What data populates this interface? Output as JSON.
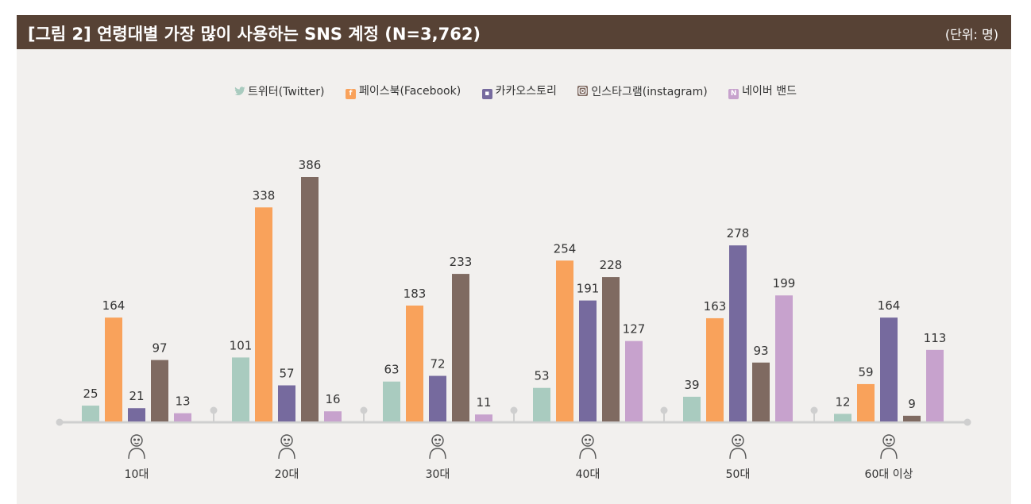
{
  "header": {
    "title": "[그림 2]  연령대별 가장 많이 사용하는 SNS 계정 (N=3,762)",
    "unit": "(단위: 명)"
  },
  "colors": {
    "header_bg": "#574235",
    "panel_bg": "#f2f0ee",
    "axis": "#cfcfcf",
    "label": "#333333"
  },
  "legend": [
    {
      "label": "트위터(Twitter)",
      "icon": "twitter-bird-icon"
    },
    {
      "label": "페이스북(Facebook)",
      "icon": "facebook-f-icon"
    },
    {
      "label": "카카오스토리",
      "icon": "kakaostory-icon"
    },
    {
      "label": "인스타그램(instagram)",
      "icon": "instagram-camera-icon"
    },
    {
      "label": "네이버 밴드",
      "icon": "naver-band-icon"
    }
  ],
  "chart_data": {
    "type": "bar",
    "title": "연령대별 가장 많이 사용하는 SNS 계정 (N=3,762)",
    "categories": [
      "10대",
      "20대",
      "30대",
      "40대",
      "50대",
      "60대 이상"
    ],
    "category_icons": [
      "person-10s-icon",
      "person-20s-icon",
      "person-30s-icon",
      "person-40s-icon",
      "person-50s-icon",
      "person-60s-icon"
    ],
    "series": [
      {
        "name": "트위터(Twitter)",
        "color": "#a9cbbf",
        "values": [
          25,
          101,
          63,
          53,
          39,
          12
        ]
      },
      {
        "name": "페이스북(Facebook)",
        "color": "#f9a25b",
        "values": [
          164,
          338,
          183,
          254,
          163,
          59
        ]
      },
      {
        "name": "카카오스토리",
        "color": "#766a9e",
        "values": [
          21,
          57,
          72,
          191,
          278,
          164
        ]
      },
      {
        "name": "인스타그램(instagram)",
        "color": "#7f6a61",
        "values": [
          97,
          386,
          233,
          228,
          93,
          9
        ]
      },
      {
        "name": "네이버 밴드",
        "color": "#c7a2cd",
        "values": [
          13,
          16,
          11,
          127,
          199,
          113
        ]
      }
    ],
    "ylim": [
      0,
      400
    ],
    "legend_position": "top-center",
    "grid": false
  }
}
